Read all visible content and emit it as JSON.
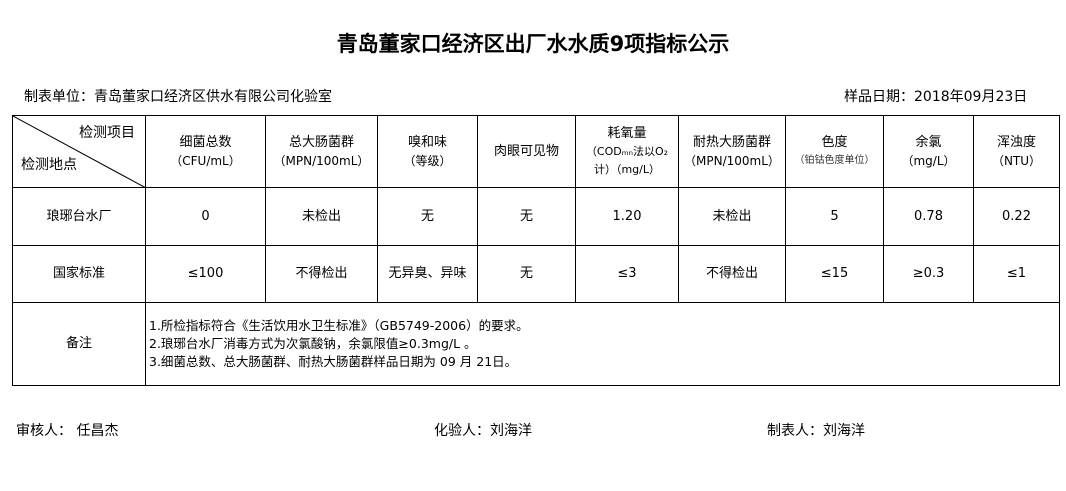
{
  "title": "青岛董家口经济区出厂水水质9项指标公示",
  "unit": "制表单位：青岛董家口经济区供水有限公司化验室",
  "sample_date": "样品日期：2018年09月23日",
  "corner": {
    "top": "检测项目",
    "bottom": "检测地点"
  },
  "headers": [
    {
      "name": "细菌总数",
      "unit": "（CFU/mL）"
    },
    {
      "name": "总大肠菌群",
      "unit": "（MPN/100mL）"
    },
    {
      "name": "嗅和味",
      "unit": "（等级）"
    },
    {
      "name": "肉眼可见物",
      "unit": ""
    },
    {
      "name": "耗氧量",
      "unit": "（CODₘₙ法以O₂计）（mg/L）"
    },
    {
      "name": "耐热大肠菌群",
      "unit": "（MPN/100mL）"
    },
    {
      "name": "色度",
      "unit": "（铂钴色度单位）"
    },
    {
      "name": "余氯",
      "unit": "（mg/L）"
    },
    {
      "name": "浑浊度",
      "unit": "（NTU）"
    }
  ],
  "rows": [
    {
      "label": "琅琊台水厂",
      "values": [
        "0",
        "未检出",
        "无",
        "无",
        "1.20",
        "未检出",
        "5",
        "0.78",
        "0.22"
      ]
    },
    {
      "label": "国家标准",
      "values": [
        "≤100",
        "不得检出",
        "无异臭、异味",
        "无",
        "≤3",
        "不得检出",
        "≤15",
        "≥0.3",
        "≤1"
      ]
    }
  ],
  "remarks": {
    "label": "备注",
    "lines": [
      "1.所检指标符合《生活饮用水卫生标准》（GB5749-2006）的要求。",
      "2.琅琊台水厂消毒方式为次氯酸钠，余氯限值≥0.3mg/L 。",
      "3.细菌总数、总大肠菌群、耐热大肠菌群样品日期为 09 月 21日。"
    ]
  },
  "footer": {
    "reviewer": "审核人：  任昌杰",
    "tester": "化验人：刘海洋",
    "preparer": "制表人：刘海洋"
  }
}
